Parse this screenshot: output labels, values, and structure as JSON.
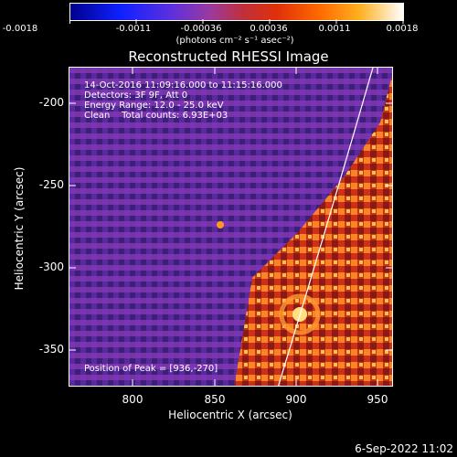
{
  "colorbar": {
    "ticks": [
      "-0.0018",
      "-0.0011",
      "-0.00036",
      "0.00036",
      "0.0011",
      "0.0018"
    ],
    "units": "(photons cm⁻² s⁻¹ asec⁻²)"
  },
  "plot": {
    "title": "Reconstructed RHESSI Image",
    "xlabel": "Heliocentric X (arcsec)",
    "ylabel": "Heliocentric Y (arcsec)",
    "xticks": [
      "800",
      "850",
      "900",
      "950"
    ],
    "yticks": [
      "-200",
      "-250",
      "-300",
      "-350"
    ],
    "info": {
      "time": "14-Oct-2016 11:09:16.000 to 11:15:16.000",
      "detectors": "Detectors: 3F 9F, Att 0",
      "energy": "Energy Range: 12.0 - 25.0 keV",
      "clean": "Clean    Total counts: 6.93E+03"
    },
    "peak": "Position of Peak = [936,-270]"
  },
  "footer": {
    "date": "6-Sep-2022 11:02"
  },
  "colors": {
    "limb": "#ffffff",
    "frame": "#ffffff"
  }
}
